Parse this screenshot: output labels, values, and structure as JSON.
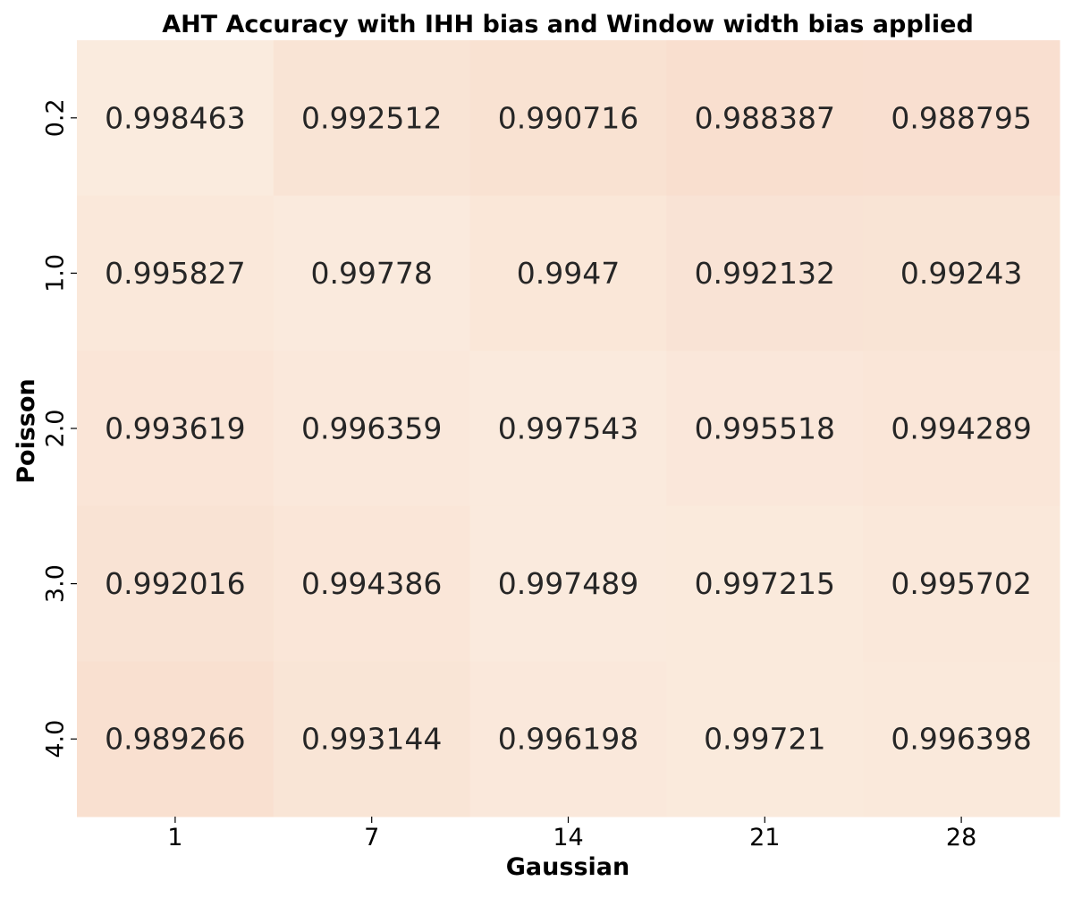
{
  "chart_data": {
    "type": "heatmap",
    "title": "AHT Accuracy with IHH bias and Window width bias applied",
    "xlabel": "Gaussian",
    "ylabel": "Poisson",
    "x_categories": [
      "1",
      "7",
      "14",
      "21",
      "28"
    ],
    "y_categories": [
      "0.2",
      "1.0",
      "2.0",
      "3.0",
      "4.0"
    ],
    "values": [
      [
        0.998463,
        0.992512,
        0.990716,
        0.988387,
        0.988795
      ],
      [
        0.995827,
        0.99778,
        0.9947,
        0.992132,
        0.99243
      ],
      [
        0.993619,
        0.996359,
        0.997543,
        0.995518,
        0.994289
      ],
      [
        0.992016,
        0.994386,
        0.997489,
        0.997215,
        0.995702
      ],
      [
        0.989266,
        0.993144,
        0.996198,
        0.99721,
        0.996398
      ]
    ],
    "cell_labels": [
      [
        "0.998463",
        "0.992512",
        "0.990716",
        "0.988387",
        "0.988795"
      ],
      [
        "0.995827",
        "0.99778",
        "0.9947",
        "0.992132",
        "0.99243"
      ],
      [
        "0.993619",
        "0.996359",
        "0.997543",
        "0.995518",
        "0.994289"
      ],
      [
        "0.992016",
        "0.994386",
        "0.997489",
        "0.997215",
        "0.995702"
      ],
      [
        "0.989266",
        "0.993144",
        "0.996198",
        "0.99721",
        "0.996398"
      ]
    ],
    "colormap": {
      "low_color": "#f9dfcf",
      "high_color": "#faebde"
    },
    "text_color": "#262626",
    "legend": "none",
    "grid": false
  }
}
